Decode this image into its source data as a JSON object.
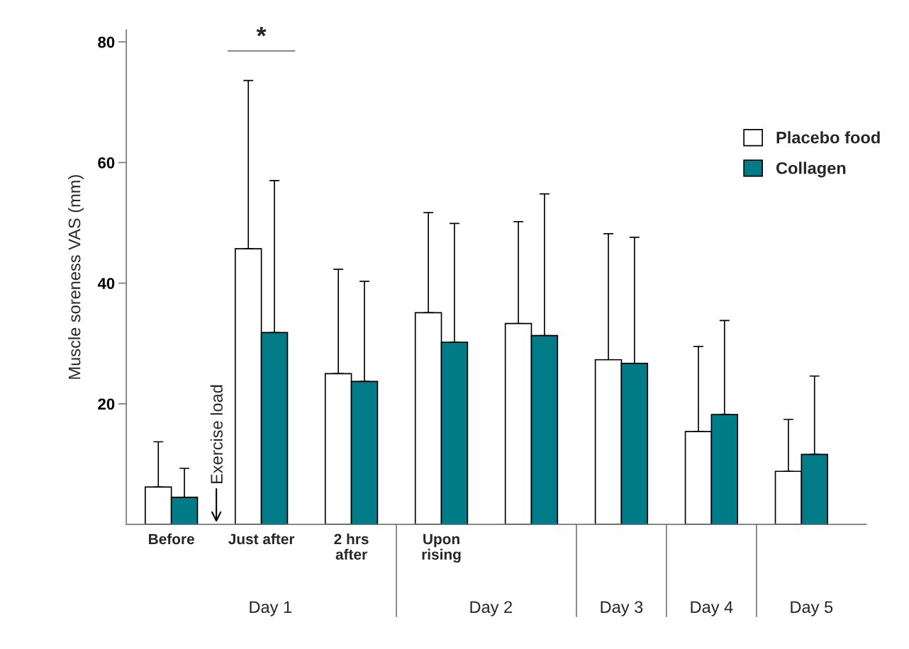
{
  "chart_data": {
    "type": "bar",
    "ylabel": "Muscle soreness VAS (mm)",
    "categories": [
      "Before",
      "Just after",
      "2 hrs\nafter",
      "Upon\nrising",
      null,
      null,
      null,
      null
    ],
    "series": [
      {
        "name": "Placebo food",
        "color": "#ffffff",
        "values": [
          6.2,
          45.7,
          25.0,
          35.1,
          33.3,
          27.3,
          15.4,
          8.8
        ],
        "errors": [
          [
            6.2,
            13.7
          ],
          [
            45.7,
            73.6
          ],
          [
            25.0,
            42.3
          ],
          [
            35.1,
            51.7
          ],
          [
            33.3,
            50.2
          ],
          [
            27.3,
            48.2
          ],
          [
            15.4,
            29.5
          ],
          [
            8.8,
            17.4
          ]
        ]
      },
      {
        "name": "Collagen",
        "color": "#007c89",
        "values": [
          4.5,
          31.8,
          23.7,
          30.2,
          31.3,
          26.7,
          18.2,
          11.6
        ],
        "errors": [
          [
            4.5,
            9.3
          ],
          [
            31.8,
            57.0
          ],
          [
            23.7,
            40.3
          ],
          [
            30.2,
            49.9
          ],
          [
            31.3,
            54.8
          ],
          [
            26.7,
            47.6
          ],
          [
            18.2,
            33.8
          ],
          [
            11.6,
            24.6
          ]
        ]
      }
    ],
    "ylim": [
      0,
      82
    ],
    "yticks": [
      20,
      40,
      60,
      80
    ],
    "grid": false,
    "legend": "right",
    "annotations": [
      "*",
      "Exercise load",
      "Day 1",
      "Day 2",
      "Day 3",
      "Day 4",
      "Day 5"
    ]
  }
}
